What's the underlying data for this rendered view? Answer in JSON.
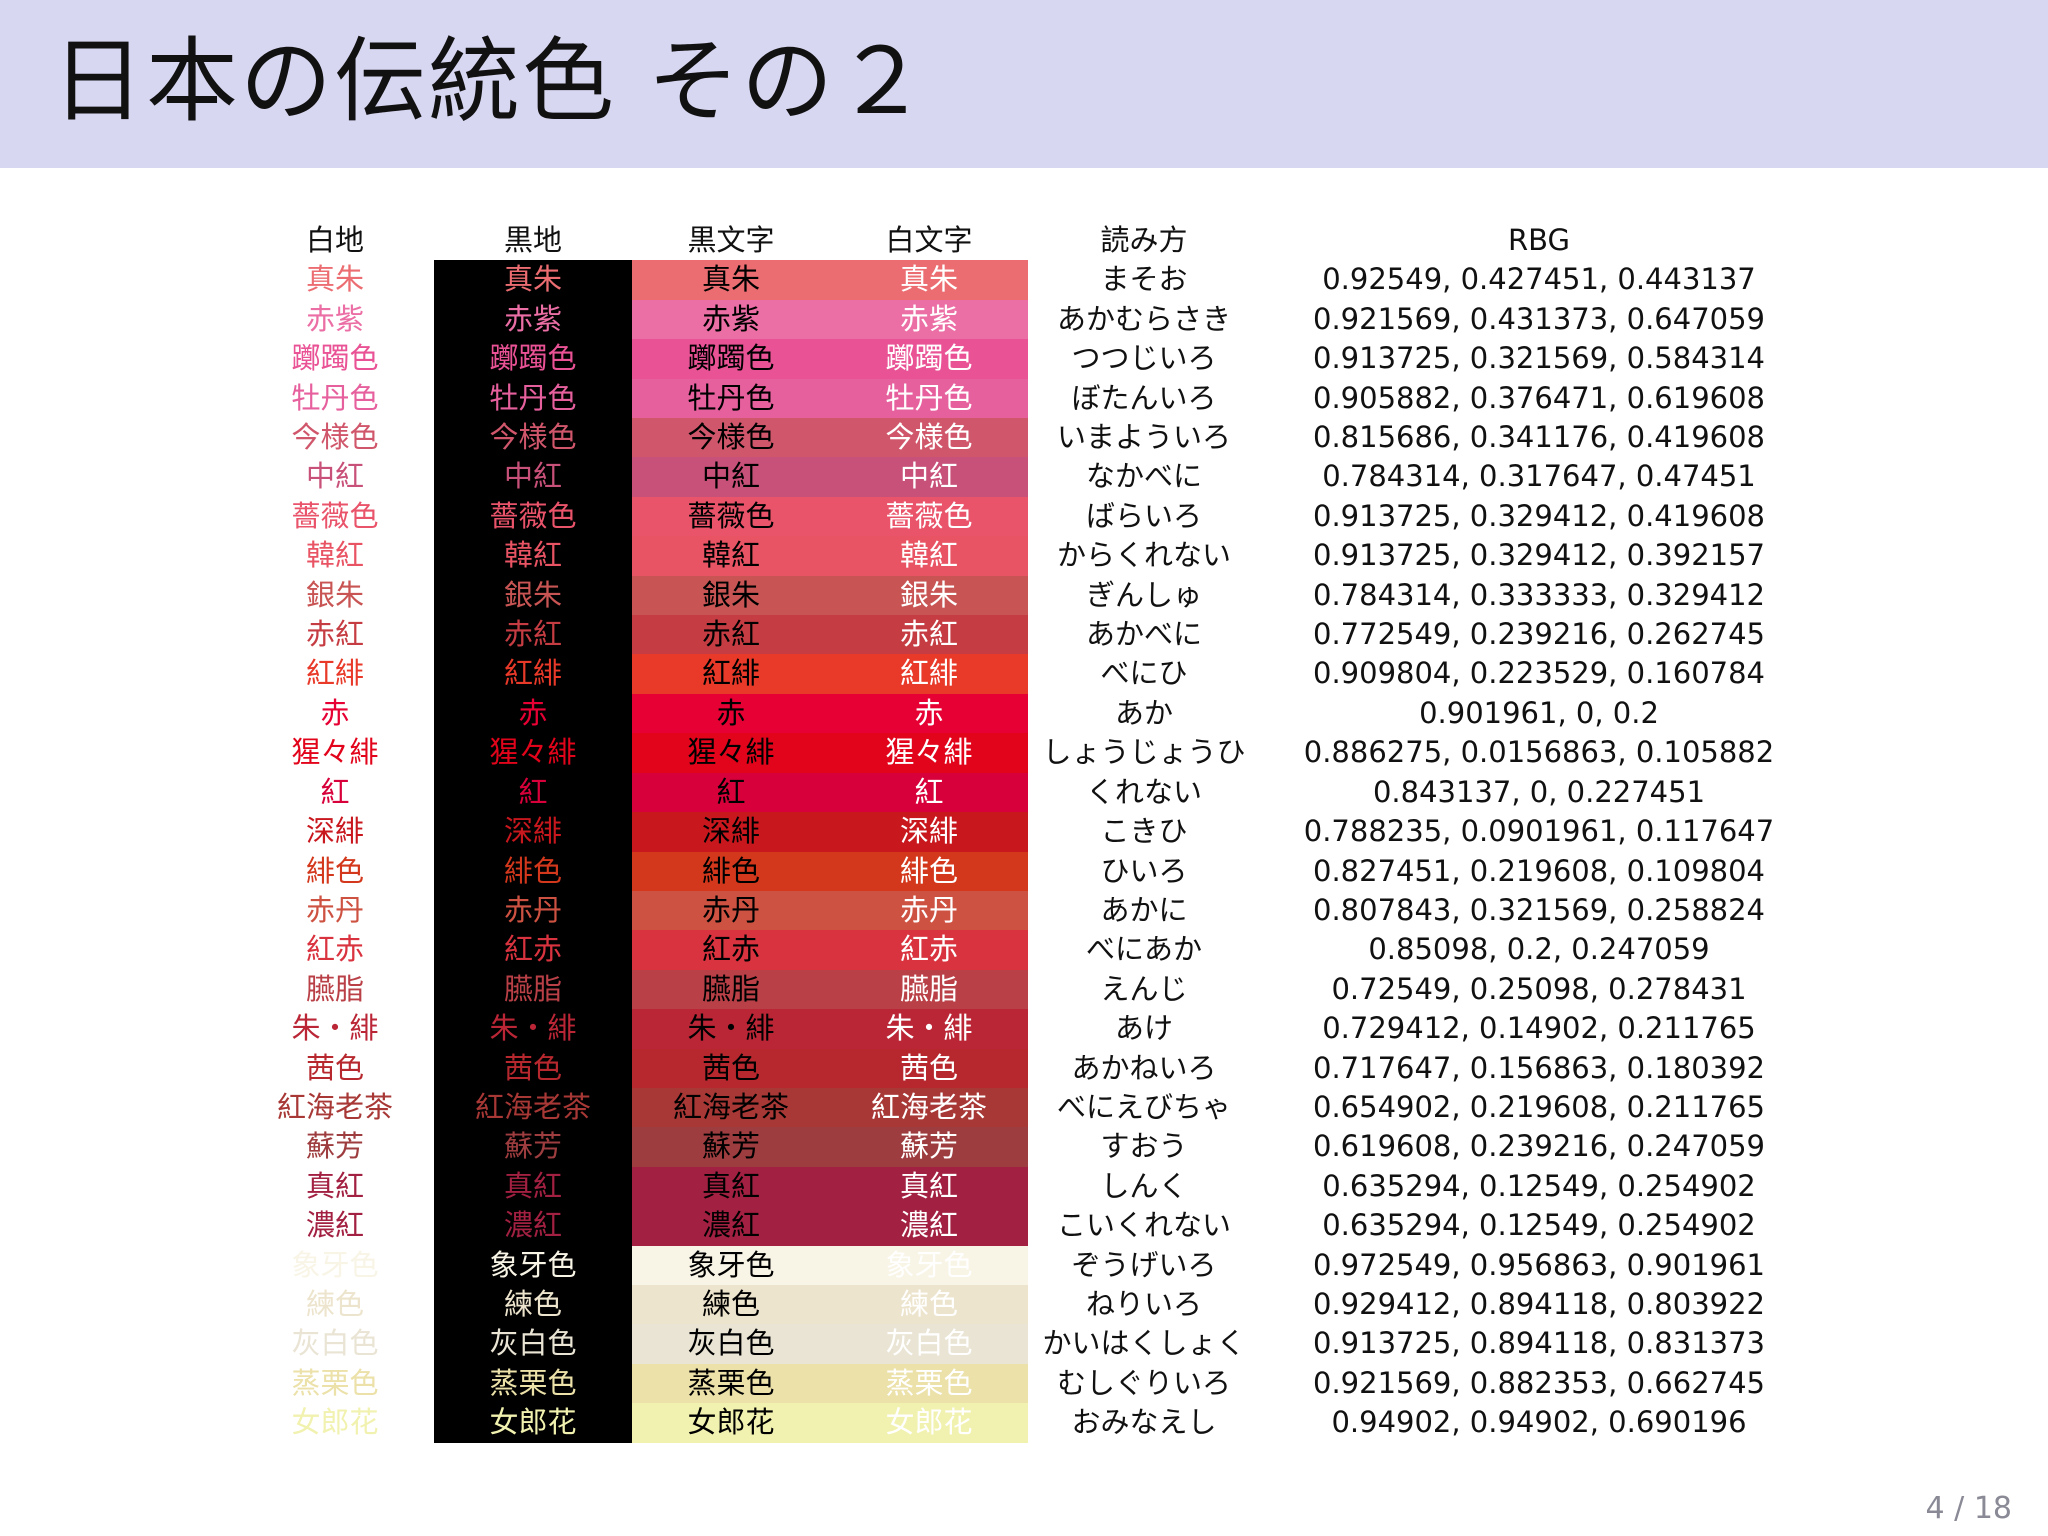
{
  "slide": {
    "title": "日本の伝統色 その２",
    "page_number": "4 / 18"
  },
  "table": {
    "headers": [
      "白地",
      "黒地",
      "黒文字",
      "白文字",
      "読み方",
      "RBG"
    ],
    "rows": [
      {
        "name": "真朱",
        "reading": "まそお",
        "rgb": "0.92549, 0.427451, 0.443137",
        "color": "#ec6d71"
      },
      {
        "name": "赤紫",
        "reading": "あかむらさき",
        "rgb": "0.921569, 0.431373, 0.647059",
        "color": "#eb6ea5"
      },
      {
        "name": "躑躅色",
        "reading": "つつじいろ",
        "rgb": "0.913725, 0.321569, 0.584314",
        "color": "#e95295"
      },
      {
        "name": "牡丹色",
        "reading": "ぼたんいろ",
        "rgb": "0.905882, 0.376471, 0.619608",
        "color": "#e7609e"
      },
      {
        "name": "今様色",
        "reading": "いまよういろ",
        "rgb": "0.815686, 0.341176, 0.419608",
        "color": "#d0576b"
      },
      {
        "name": "中紅",
        "reading": "なかべに",
        "rgb": "0.784314, 0.317647, 0.47451",
        "color": "#c85179"
      },
      {
        "name": "薔薇色",
        "reading": "ばらいろ",
        "rgb": "0.913725, 0.329412, 0.419608",
        "color": "#e9546b"
      },
      {
        "name": "韓紅",
        "reading": "からくれない",
        "rgb": "0.913725, 0.329412, 0.392157",
        "color": "#e95464"
      },
      {
        "name": "銀朱",
        "reading": "ぎんしゅ",
        "rgb": "0.784314, 0.333333, 0.329412",
        "color": "#c85554"
      },
      {
        "name": "赤紅",
        "reading": "あかべに",
        "rgb": "0.772549, 0.239216, 0.262745",
        "color": "#c53d43"
      },
      {
        "name": "紅緋",
        "reading": "べにひ",
        "rgb": "0.909804, 0.223529, 0.160784",
        "color": "#e83929"
      },
      {
        "name": "赤",
        "reading": "あか",
        "rgb": "0.901961, 0, 0.2",
        "color": "#e60033"
      },
      {
        "name": "猩々緋",
        "reading": "しょうじょうひ",
        "rgb": "0.886275, 0.0156863, 0.105882",
        "color": "#e2041b"
      },
      {
        "name": "紅",
        "reading": "くれない",
        "rgb": "0.843137, 0, 0.227451",
        "color": "#d7003a"
      },
      {
        "name": "深緋",
        "reading": "こきひ",
        "rgb": "0.788235, 0.0901961, 0.117647",
        "color": "#c9171e"
      },
      {
        "name": "緋色",
        "reading": "ひいろ",
        "rgb": "0.827451, 0.219608, 0.109804",
        "color": "#d3381c"
      },
      {
        "name": "赤丹",
        "reading": "あかに",
        "rgb": "0.807843, 0.321569, 0.258824",
        "color": "#ce5242"
      },
      {
        "name": "紅赤",
        "reading": "べにあか",
        "rgb": "0.85098, 0.2, 0.247059",
        "color": "#d9333f"
      },
      {
        "name": "臙脂",
        "reading": "えんじ",
        "rgb": "0.72549, 0.25098, 0.278431",
        "color": "#b94047"
      },
      {
        "name": "朱・緋",
        "reading": "あけ",
        "rgb": "0.729412, 0.14902, 0.211765",
        "color": "#ba2636"
      },
      {
        "name": "茜色",
        "reading": "あかねいろ",
        "rgb": "0.717647, 0.156863, 0.180392",
        "color": "#b7282e"
      },
      {
        "name": "紅海老茶",
        "reading": "べにえびちゃ",
        "rgb": "0.654902, 0.219608, 0.211765",
        "color": "#a73836"
      },
      {
        "name": "蘇芳",
        "reading": "すおう",
        "rgb": "0.619608, 0.239216, 0.247059",
        "color": "#9e3d3f"
      },
      {
        "name": "真紅",
        "reading": "しんく",
        "rgb": "0.635294, 0.12549, 0.254902",
        "color": "#a22041"
      },
      {
        "name": "濃紅",
        "reading": "こいくれない",
        "rgb": "0.635294, 0.12549, 0.254902",
        "color": "#a22041"
      },
      {
        "name": "象牙色",
        "reading": "ぞうげいろ",
        "rgb": "0.972549, 0.956863, 0.901961",
        "color": "#f8f4e6"
      },
      {
        "name": "練色",
        "reading": "ねりいろ",
        "rgb": "0.929412, 0.894118, 0.803922",
        "color": "#ede4cd"
      },
      {
        "name": "灰白色",
        "reading": "かいはくしょく",
        "rgb": "0.913725, 0.894118, 0.831373",
        "color": "#e9e4d4"
      },
      {
        "name": "蒸栗色",
        "reading": "むしぐりいろ",
        "rgb": "0.921569, 0.882353, 0.662745",
        "color": "#ebe1a9"
      },
      {
        "name": "女郎花",
        "reading": "おみなえし",
        "rgb": "0.94902, 0.94902, 0.690196",
        "color": "#f2f2b0"
      }
    ]
  }
}
